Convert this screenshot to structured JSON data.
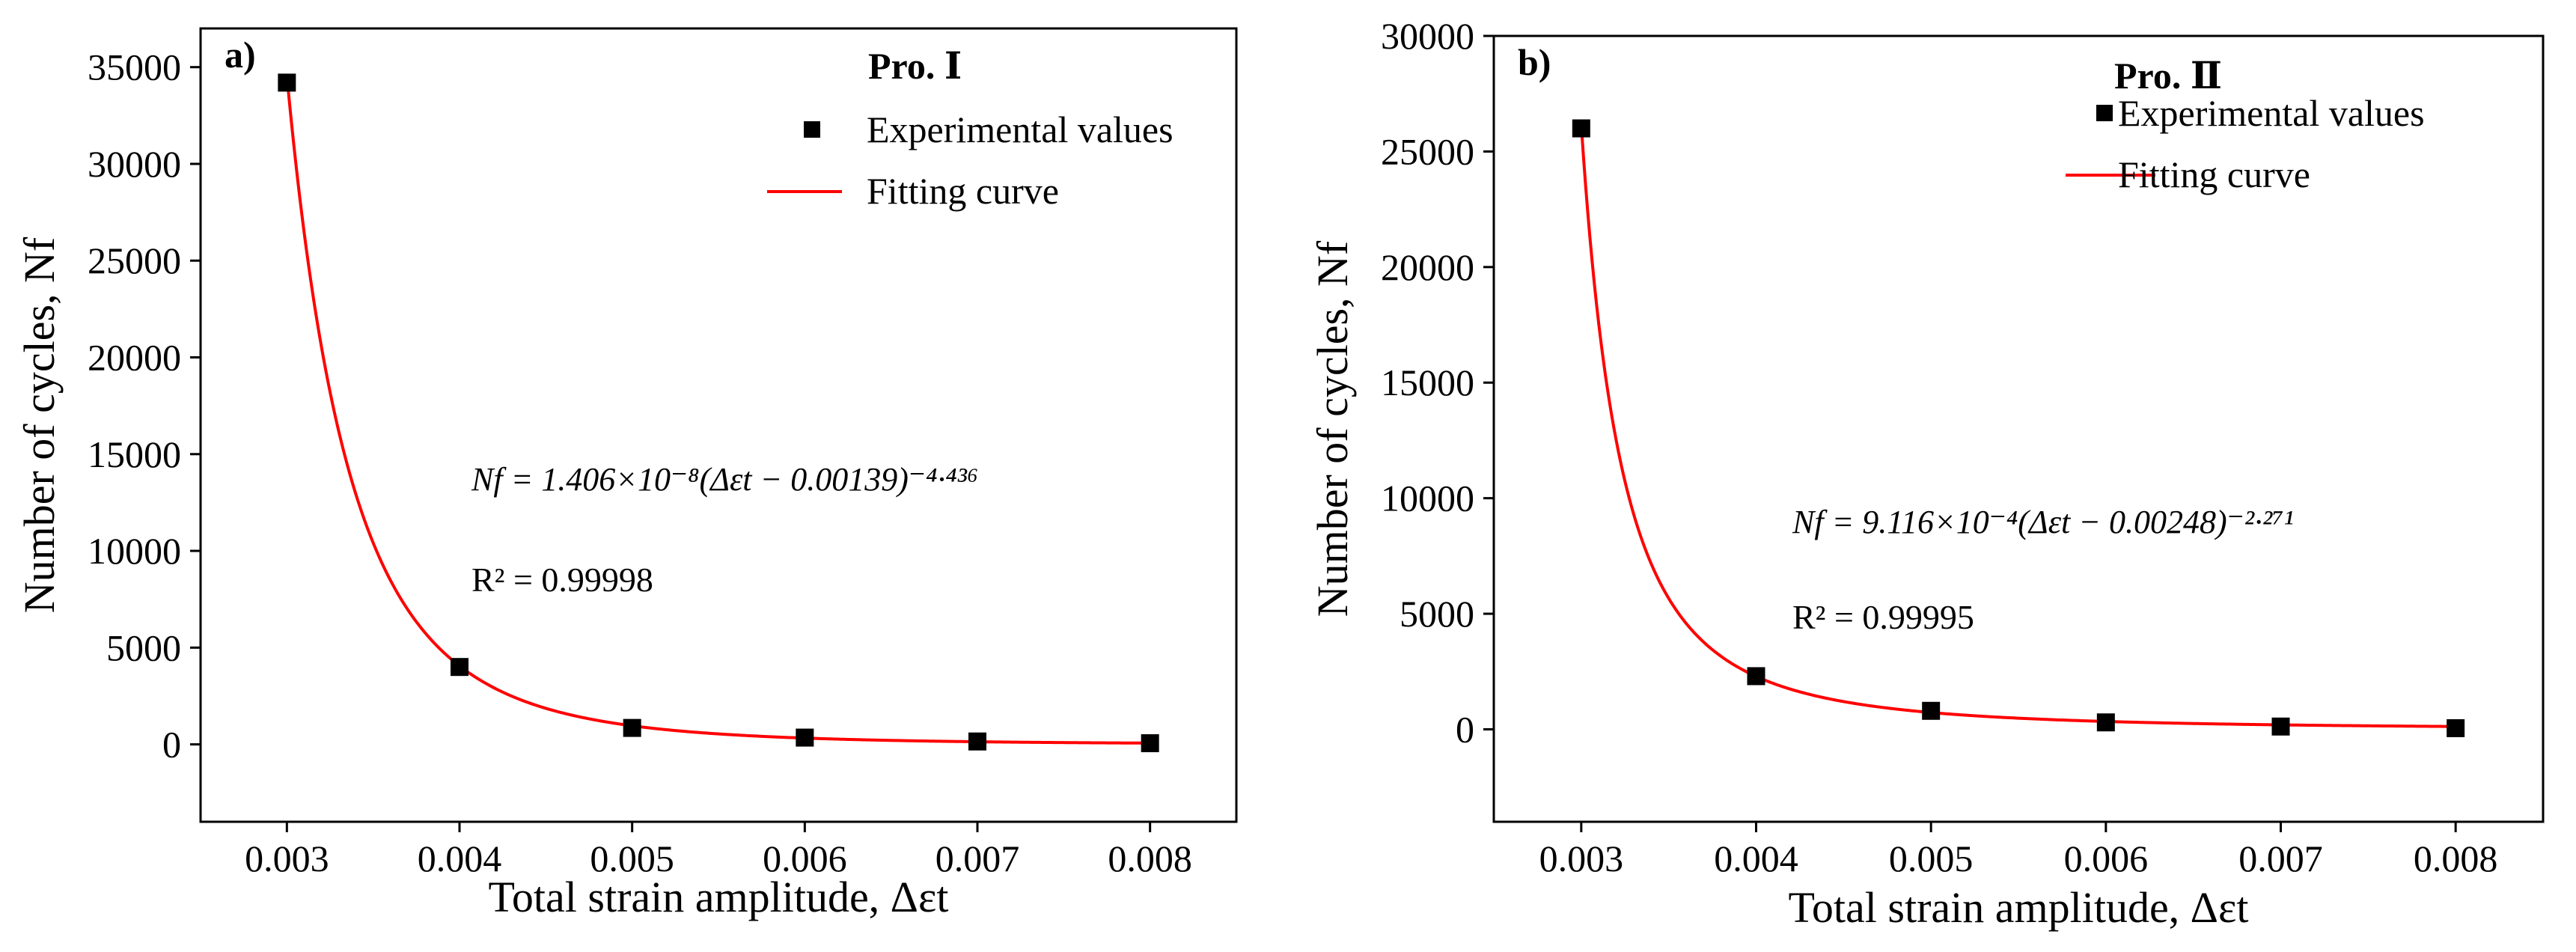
{
  "chart_data": [
    {
      "type": "scatter",
      "panel_label": "a)",
      "legend_title": "Pro. Ⅰ",
      "legend_items": [
        "Experimental values",
        "Fitting curve"
      ],
      "legend_position": "top-right",
      "xlabel": "Total strain amplitude, Δεt",
      "ylabel": "Number of cycles, Nf",
      "xlim": [
        0.0025,
        0.0085
      ],
      "ylim": [
        -4000,
        37000
      ],
      "xticks": [
        0.003,
        0.004,
        0.005,
        0.006,
        0.007,
        0.008
      ],
      "xtick_labels": [
        "0.003",
        "0.004",
        "0.005",
        "0.006",
        "0.007",
        "0.008"
      ],
      "yticks": [
        0,
        5000,
        10000,
        15000,
        20000,
        25000,
        30000,
        35000
      ],
      "ytick_labels": [
        "0",
        "5000",
        "10000",
        "15000",
        "20000",
        "25000",
        "30000",
        "35000"
      ],
      "series": [
        {
          "name": "Experimental values",
          "x": [
            0.003,
            0.004,
            0.005,
            0.006,
            0.007,
            0.008
          ],
          "values": [
            34200,
            4000,
            850,
            350,
            150,
            60
          ],
          "color": "#000000"
        }
      ],
      "fit": {
        "name": "Fitting curve",
        "A": 1.406e-08,
        "c": 0.00139,
        "b": -4.436,
        "x_range": [
          0.003,
          0.008
        ],
        "color": "#ff0000"
      },
      "equation": "Nf = 1.406×10⁻⁸(Δεt − 0.00139)⁻⁴·⁴³⁶",
      "r2": "R² = 0.99998"
    },
    {
      "type": "scatter",
      "panel_label": "b)",
      "legend_title": "Pro. Ⅱ",
      "legend_items": [
        "Experimental values",
        "Fitting curve"
      ],
      "legend_position": "top-right",
      "xlabel": "Total strain amplitude, Δεt",
      "ylabel": "Number of cycles, Nf",
      "xlim": [
        0.0025,
        0.0085
      ],
      "ylim": [
        -4000,
        30000
      ],
      "xticks": [
        0.003,
        0.004,
        0.005,
        0.006,
        0.007,
        0.008
      ],
      "xtick_labels": [
        "0.003",
        "0.004",
        "0.005",
        "0.006",
        "0.007",
        "0.008"
      ],
      "yticks": [
        0,
        5000,
        10000,
        15000,
        20000,
        25000,
        30000
      ],
      "ytick_labels": [
        "0",
        "5000",
        "10000",
        "15000",
        "20000",
        "25000",
        "30000"
      ],
      "series": [
        {
          "name": "Experimental values",
          "x": [
            0.003,
            0.004,
            0.005,
            0.006,
            0.007,
            0.008
          ],
          "values": [
            26000,
            2300,
            800,
            300,
            120,
            50
          ],
          "color": "#000000"
        }
      ],
      "fit": {
        "name": "Fitting curve",
        "A": 0.0009116,
        "c": 0.00248,
        "b": -2.271,
        "x_range": [
          0.003,
          0.008
        ],
        "color": "#ff0000"
      },
      "equation": "Nf = 9.116×10⁻⁴(Δεt − 0.00248)⁻²·²⁷¹",
      "r2": "R² = 0.99995"
    }
  ]
}
